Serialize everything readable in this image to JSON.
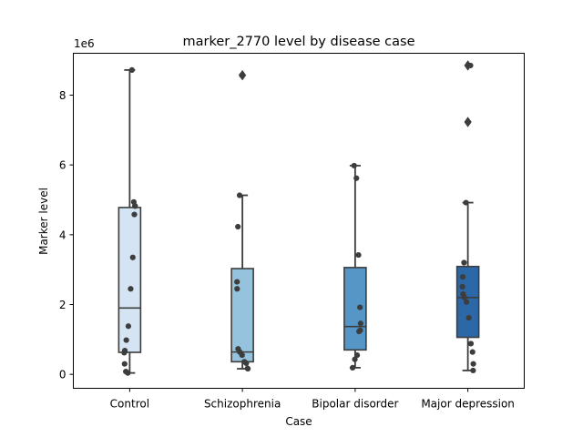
{
  "chart_data": {
    "type": "box",
    "title": "marker_2770 level by disease case",
    "xlabel": "Case",
    "ylabel": "Marker level",
    "scale_label": "1e6",
    "ylim": [
      -400000,
      9200000
    ],
    "yticks": [
      {
        "value": 0,
        "label": "0"
      },
      {
        "value": 2000000,
        "label": "2"
      },
      {
        "value": 4000000,
        "label": "4"
      },
      {
        "value": 6000000,
        "label": "6"
      },
      {
        "value": 8000000,
        "label": "8"
      }
    ],
    "grid": false,
    "categories": [
      "Control",
      "Schizophrenia",
      "Bipolar disorder",
      "Major depression"
    ],
    "colors": [
      "#d4e4f2",
      "#95c3de",
      "#5596c7",
      "#2c68a8"
    ],
    "boxes": [
      {
        "q1": 630000,
        "median": 1900000,
        "q3": 4780000,
        "whislo": 40000,
        "whishi": 8720000,
        "fliers": []
      },
      {
        "q1": 360000,
        "median": 640000,
        "q3": 3030000,
        "whislo": 160000,
        "whishi": 5130000,
        "fliers": [
          8570000
        ]
      },
      {
        "q1": 700000,
        "median": 1370000,
        "q3": 3060000,
        "whislo": 190000,
        "whishi": 5980000,
        "fliers": []
      },
      {
        "q1": 1060000,
        "median": 2200000,
        "q3": 3090000,
        "whislo": 110000,
        "whishi": 4920000,
        "fliers": [
          7230000,
          8850000
        ]
      }
    ],
    "points": [
      [
        8720000,
        4940000,
        4830000,
        4820000,
        4580000,
        3350000,
        2450000,
        1380000,
        980000,
        680000,
        620000,
        300000,
        80000,
        40000
      ],
      [
        8570000,
        5130000,
        4230000,
        2650000,
        2450000,
        730000,
        640000,
        550000,
        360000,
        320000,
        170000,
        160000
      ],
      [
        5980000,
        5620000,
        3420000,
        1920000,
        1460000,
        1260000,
        1230000,
        550000,
        430000,
        190000
      ],
      [
        8850000,
        7230000,
        4920000,
        3200000,
        2790000,
        2510000,
        2300000,
        2200000,
        2070000,
        1620000,
        880000,
        640000,
        300000,
        110000
      ]
    ]
  }
}
